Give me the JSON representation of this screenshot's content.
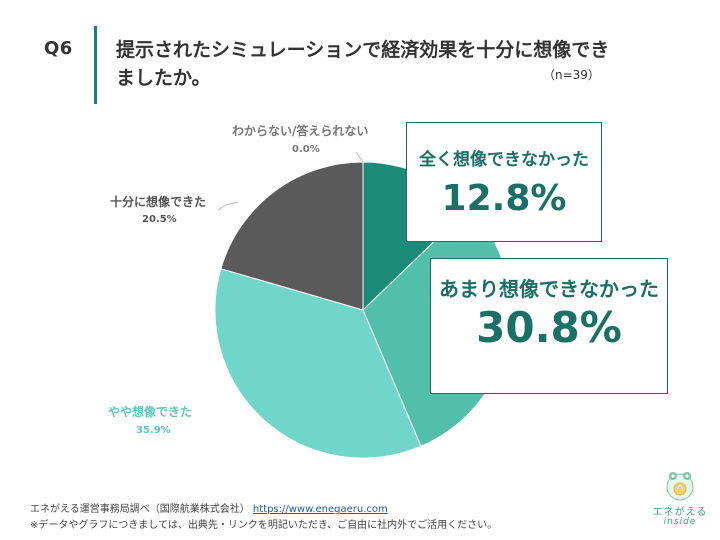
{
  "header": {
    "question_label": "Q6",
    "title": "提示されたシミュレーションで経済効果を十分に想像できましたか。",
    "sample_size": "（n=39）"
  },
  "chart_data": {
    "type": "pie",
    "slices": [
      {
        "label": "全く想像できなかった",
        "value": 12.8,
        "value_text": "12.8%",
        "color": "#1b8a78"
      },
      {
        "label": "あまり想像できなかった",
        "value": 30.8,
        "value_text": "30.8%",
        "color": "#52bfaa"
      },
      {
        "label": "やや想像できた",
        "value": 35.9,
        "value_text": "35.9%",
        "color": "#6fd6c9"
      },
      {
        "label": "十分に想像できた",
        "value": 20.5,
        "value_text": "20.5%",
        "color": "#5a5a5a"
      },
      {
        "label": "わからない/答えられない",
        "value": 0.0,
        "value_text": "0.0%",
        "color": "#9a9a9a"
      }
    ],
    "callouts": [
      {
        "label": "全く想像できなかった",
        "value": "12.8%"
      },
      {
        "label": "あまり想像できなかった",
        "value": "30.8%"
      }
    ]
  },
  "footer": {
    "source_text": "エネがえる運営事務局調べ（国際航業株式会社）",
    "source_url": "https://www.enegaeru.com",
    "note": "※データやグラフにつきましては、出典先・リンクを明記いただき、ご自由に社内外でご活用ください。"
  },
  "logo": {
    "name": "エネがえる",
    "subtitle": "inside",
    "icon": "frog-logo-icon"
  }
}
